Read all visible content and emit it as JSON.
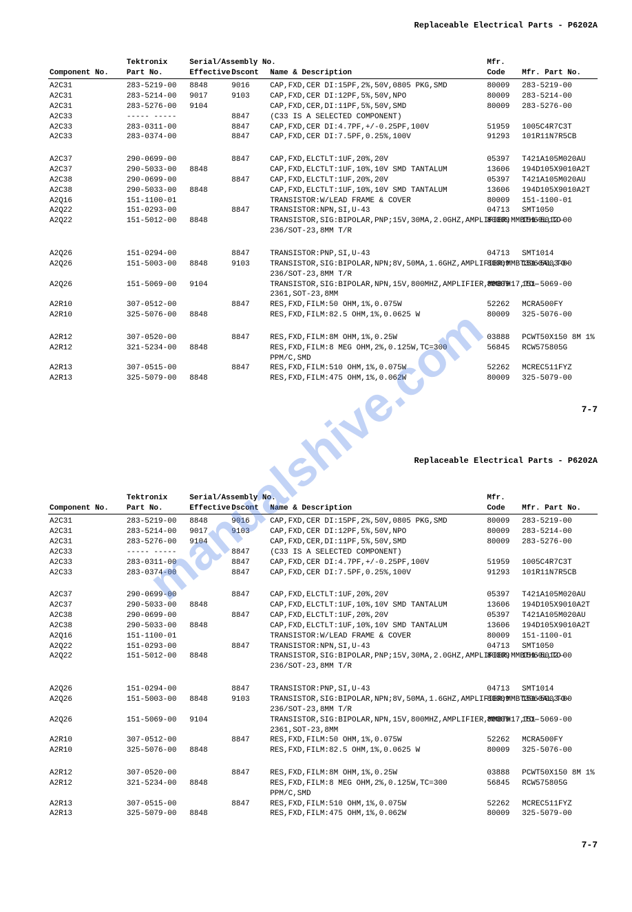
{
  "doc": {
    "title": "Replaceable Electrical Parts - P6202A",
    "page_num": "7-7",
    "watermark": "manualshive.com",
    "headers": {
      "comp_no": "Component No.",
      "tek_label": "Tektronix",
      "tek_part": "Part No.",
      "serial_label": "Serial/Assembly No.",
      "effective": "Effective",
      "dscont": "Dscont",
      "name_desc": "Name & Description",
      "mfr_label": "Mfr.",
      "mfr_code": "Code",
      "mfr_part": "Mfr. Part No."
    },
    "groups": [
      [
        {
          "comp": "A2C31",
          "tek": "283-5219-00",
          "eff": "8848",
          "dsc": "9016",
          "desc": "CAP,FXD,CER DI:15PF,2%,50V,0805 PKG,SMD",
          "mfrc": "80009",
          "mfrp": "283-5219-00"
        },
        {
          "comp": "A2C31",
          "tek": "283-5214-00",
          "eff": "9017",
          "dsc": "9103",
          "desc": "CAP,FXD,CER DI:12PF,5%,50V,NPO",
          "mfrc": "80009",
          "mfrp": "283-5214-00"
        },
        {
          "comp": "A2C31",
          "tek": "283-5276-00",
          "eff": "9104",
          "dsc": "",
          "desc": "CAP,FXD,CER,DI:11PF,5%,50V,SMD",
          "mfrc": "80009",
          "mfrp": "283-5276-00"
        },
        {
          "comp": "A2C33",
          "tek": "----- -----",
          "eff": "",
          "dsc": "8847",
          "desc": "(C33 IS A SELECTED COMPONENT)",
          "mfrc": "",
          "mfrp": ""
        },
        {
          "comp": "A2C33",
          "tek": "283-0311-00",
          "eff": "",
          "dsc": "8847",
          "desc": "CAP,FXD,CER DI:4.7PF,+/-0.25PF,100V",
          "mfrc": "51959",
          "mfrp": "1005C4R7C3T"
        },
        {
          "comp": "A2C33",
          "tek": "283-0374-00",
          "eff": "",
          "dsc": "8847",
          "desc": "CAP,FXD,CER DI:7.5PF,0.25%,100V",
          "mfrc": "91293",
          "mfrp": "101R11N7R5CB"
        }
      ],
      [
        {
          "comp": "A2C37",
          "tek": "290-0699-00",
          "eff": "",
          "dsc": "8847",
          "desc": "CAP,FXD,ELCTLT:1UF,20%,20V",
          "mfrc": "05397",
          "mfrp": "T421A105M020AU"
        },
        {
          "comp": "A2C37",
          "tek": "290-5033-00",
          "eff": "8848",
          "dsc": "",
          "desc": "CAP,FXD,ELCTLT:1UF,10%,10V SMD TANTALUM",
          "mfrc": "13606",
          "mfrp": "194D105X9010A2T"
        },
        {
          "comp": "A2C38",
          "tek": "290-0699-00",
          "eff": "",
          "dsc": "8847",
          "desc": "CAP,FXD,ELCTLT:1UF,20%,20V",
          "mfrc": "05397",
          "mfrp": "T421A105M020AU"
        },
        {
          "comp": "A2C38",
          "tek": "290-5033-00",
          "eff": "8848",
          "dsc": "",
          "desc": "CAP,FXD,ELCTLT:1UF,10%,10V SMD TANTALUM",
          "mfrc": "13606",
          "mfrp": "194D105X9010A2T"
        },
        {
          "comp": "A2Q16",
          "tek": "151-1100-01",
          "eff": "",
          "dsc": "",
          "desc": "TRANSISTOR:W/LEAD FRAME & COVER",
          "mfrc": "80009",
          "mfrp": "151-1100-01"
        },
        {
          "comp": "A2Q22",
          "tek": "151-0293-00",
          "eff": "",
          "dsc": "8847",
          "desc": "TRANSISTOR:NPN,SI,U-43",
          "mfrc": "04713",
          "mfrp": "SMT1050"
        },
        {
          "comp": "A2Q22",
          "tek": "151-5012-00",
          "eff": "8848",
          "dsc": "",
          "desc": "TRANSISTOR,SIG:BIPOLAR,PNP;15V,30MA,2.0GHZ,AMPLIFIER;MMBTH69L,TO-236/SOT-23,8MM T/R",
          "mfrc": "80009",
          "mfrp": "151-5012-00"
        }
      ],
      [
        {
          "comp": "A2Q26",
          "tek": "151-0294-00",
          "eff": "",
          "dsc": "8847",
          "desc": "TRANSISTOR:PNP,SI,U-43",
          "mfrc": "04713",
          "mfrp": "SMT1014"
        },
        {
          "comp": "A2Q26",
          "tek": "151-5003-00",
          "eff": "8848",
          "dsc": "9103",
          "desc": "TRANSISTOR,SIG:BIPOLAR,NPN;8V,50MA,1.6GHZ,AMPLIFIER;MMBT3960AL,TO-236/SOT-23,8MM T/R",
          "mfrc": "80009",
          "mfrp": "151-5003-00"
        },
        {
          "comp": "A2Q26",
          "tek": "151-5069-00",
          "eff": "9104",
          "dsc": "",
          "desc": "TRANSISTOR,SIG:BIPOLAR,NPN,15V,800MHZ,AMPLIFIER,MMBTH17,TO-2361,SOT-23,8MM",
          "mfrc": "80009",
          "mfrp": "151-5069-00"
        },
        {
          "comp": "A2R10",
          "tek": "307-0512-00",
          "eff": "",
          "dsc": "8847",
          "desc": "RES,FXD,FILM:50 OHM,1%,0.075W",
          "mfrc": "52262",
          "mfrp": "MCRA500FY"
        },
        {
          "comp": "A2R10",
          "tek": "325-5076-00",
          "eff": "8848",
          "dsc": "",
          "desc": "RES,FXD,FILM:82.5 OHM,1%,0.0625 W",
          "mfrc": "80009",
          "mfrp": "325-5076-00"
        }
      ],
      [
        {
          "comp": "A2R12",
          "tek": "307-0520-00",
          "eff": "",
          "dsc": "8847",
          "desc": "RES,FXD,FILM:8M OHM,1%,0.25W",
          "mfrc": "03888",
          "mfrp": "PCWT50X150 8M 1%"
        },
        {
          "comp": "A2R12",
          "tek": "321-5234-00",
          "eff": "8848",
          "dsc": "",
          "desc": "RES,FXD,FILM:8 MEG OHM,2%,0.125W,TC=300 PPM/C,SMD",
          "mfrc": "56845",
          "mfrp": "RCW575805G"
        },
        {
          "comp": "A2R13",
          "tek": "307-0515-00",
          "eff": "",
          "dsc": "8847",
          "desc": "RES,FXD,FILM:510 OHM,1%,0.075W",
          "mfrc": "52262",
          "mfrp": "MCREC511FYZ"
        },
        {
          "comp": "A2R13",
          "tek": "325-5079-00",
          "eff": "8848",
          "dsc": "",
          "desc": "RES,FXD,FILM:475 OHM,1%,0.062W",
          "mfrc": "80009",
          "mfrp": "325-5079-00"
        }
      ]
    ]
  }
}
